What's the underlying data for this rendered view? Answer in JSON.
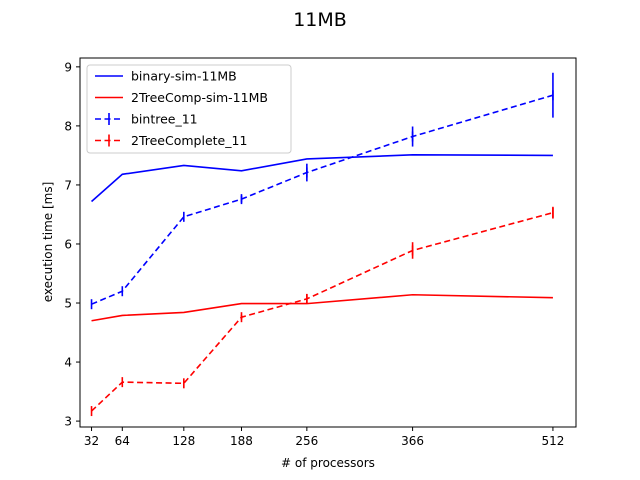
{
  "chart_data": {
    "type": "line",
    "title": "11MB",
    "xlabel": "# of processors",
    "ylabel": "execution time [ms]",
    "x": [
      32,
      64,
      128,
      188,
      256,
      366,
      512
    ],
    "xticks": [
      "32",
      "64",
      "128",
      "188",
      "256",
      "366",
      "512"
    ],
    "xlim": [
      20,
      536
    ],
    "ylim": [
      2.9,
      9.15
    ],
    "yticks": [
      "3",
      "4",
      "5",
      "6",
      "7",
      "8",
      "9"
    ],
    "grid": false,
    "legend_position": "top-left",
    "series": [
      {
        "name": "binary-sim-11MB",
        "color": "#0000ff",
        "style": "solid",
        "values": [
          6.72,
          7.18,
          7.33,
          7.24,
          7.44,
          7.51,
          7.5
        ]
      },
      {
        "name": "2TreeComp-sim-11MB",
        "color": "#ff0000",
        "style": "solid",
        "values": [
          4.7,
          4.79,
          4.84,
          4.99,
          4.99,
          5.14,
          5.09
        ]
      },
      {
        "name": "bintree_11",
        "color": "#0000ff",
        "style": "dashed",
        "values": [
          4.98,
          5.2,
          6.46,
          6.76,
          7.21,
          7.82,
          8.52
        ],
        "errors": [
          0.0,
          0.0,
          0.0,
          0.06,
          0.15,
          0.17,
          0.38
        ]
      },
      {
        "name": "2TreeComplete_11",
        "color": "#ff0000",
        "style": "dashed",
        "values": [
          3.17,
          3.66,
          3.64,
          4.76,
          5.07,
          5.89,
          6.53
        ],
        "errors": [
          0.0,
          0.0,
          0.0,
          0.04,
          0.08,
          0.14,
          0.1
        ]
      }
    ]
  }
}
